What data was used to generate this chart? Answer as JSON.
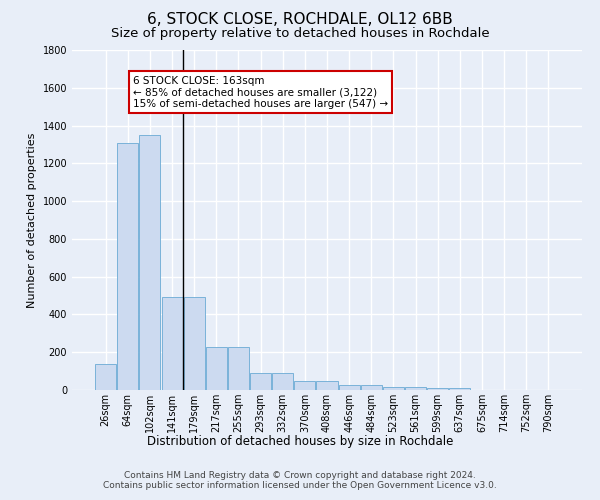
{
  "title": "6, STOCK CLOSE, ROCHDALE, OL12 6BB",
  "subtitle": "Size of property relative to detached houses in Rochdale",
  "xlabel": "Distribution of detached houses by size in Rochdale",
  "ylabel": "Number of detached properties",
  "categories": [
    "26sqm",
    "64sqm",
    "102sqm",
    "141sqm",
    "179sqm",
    "217sqm",
    "255sqm",
    "293sqm",
    "332sqm",
    "370sqm",
    "408sqm",
    "446sqm",
    "484sqm",
    "523sqm",
    "561sqm",
    "599sqm",
    "637sqm",
    "675sqm",
    "714sqm",
    "752sqm",
    "790sqm"
  ],
  "values": [
    137,
    1307,
    1350,
    490,
    490,
    228,
    228,
    88,
    88,
    50,
    50,
    28,
    28,
    15,
    15,
    12,
    12,
    0,
    0,
    0,
    0
  ],
  "bar_color": "#ccdaf0",
  "bar_edge_color": "#6aaad4",
  "background_color": "#e8eef8",
  "grid_color": "#ffffff",
  "annotation_text": "6 STOCK CLOSE: 163sqm\n← 85% of detached houses are smaller (3,122)\n15% of semi-detached houses are larger (547) →",
  "annotation_box_color": "#ffffff",
  "annotation_box_edge": "#cc0000",
  "vline_x": 3.5,
  "ylim": [
    0,
    1800
  ],
  "yticks": [
    0,
    200,
    400,
    600,
    800,
    1000,
    1200,
    1400,
    1600,
    1800
  ],
  "footer": "Contains HM Land Registry data © Crown copyright and database right 2024.\nContains public sector information licensed under the Open Government Licence v3.0.",
  "title_fontsize": 11,
  "subtitle_fontsize": 9.5,
  "xlabel_fontsize": 8.5,
  "ylabel_fontsize": 8,
  "tick_fontsize": 7,
  "footer_fontsize": 6.5
}
